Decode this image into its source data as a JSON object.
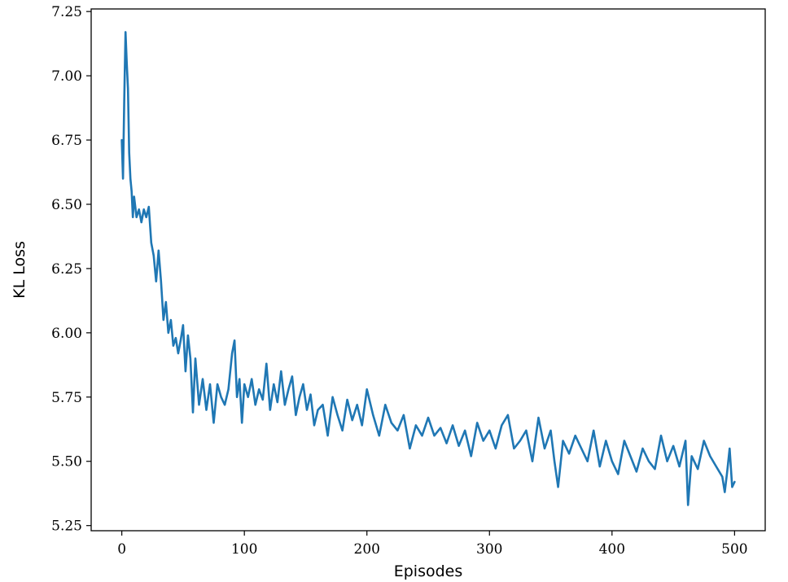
{
  "chart_data": {
    "type": "line",
    "xlabel": "Episodes",
    "ylabel": "KL Loss",
    "xlim": [
      -25,
      525
    ],
    "ylim": [
      5.23,
      7.26
    ],
    "grid": false,
    "xticks": [
      0,
      100,
      200,
      300,
      400,
      500
    ],
    "yticks": [
      5.25,
      5.5,
      5.75,
      6.0,
      6.25,
      6.5,
      6.75,
      7.0,
      7.25
    ],
    "xtick_labels": [
      "0",
      "100",
      "200",
      "300",
      "400",
      "500"
    ],
    "ytick_labels": [
      "5.25",
      "5.50",
      "5.75",
      "6.00",
      "6.25",
      "6.50",
      "6.75",
      "7.00",
      "7.25"
    ],
    "series": [
      {
        "color": "#1f77b4",
        "x": [
          0,
          1,
          2,
          3,
          4,
          5,
          6,
          7,
          8,
          9,
          10,
          12,
          14,
          16,
          18,
          20,
          22,
          24,
          26,
          28,
          30,
          32,
          34,
          36,
          38,
          40,
          42,
          44,
          46,
          48,
          50,
          52,
          54,
          56,
          58,
          60,
          63,
          66,
          69,
          72,
          75,
          78,
          81,
          84,
          87,
          90,
          92,
          94,
          96,
          98,
          100,
          103,
          106,
          109,
          112,
          115,
          118,
          121,
          124,
          127,
          130,
          133,
          136,
          139,
          142,
          145,
          148,
          151,
          154,
          157,
          160,
          164,
          168,
          172,
          176,
          180,
          184,
          188,
          192,
          196,
          200,
          205,
          210,
          215,
          220,
          225,
          230,
          235,
          240,
          245,
          250,
          255,
          260,
          265,
          270,
          275,
          280,
          285,
          290,
          295,
          300,
          305,
          310,
          315,
          320,
          325,
          330,
          335,
          340,
          345,
          350,
          353,
          356,
          360,
          365,
          370,
          375,
          380,
          385,
          390,
          395,
          400,
          405,
          410,
          415,
          420,
          425,
          430,
          435,
          440,
          445,
          450,
          455,
          460,
          462,
          465,
          470,
          475,
          480,
          485,
          490,
          492,
          494,
          496,
          498,
          500
        ],
        "y": [
          6.75,
          6.6,
          6.9,
          7.17,
          7.05,
          6.95,
          6.7,
          6.6,
          6.55,
          6.45,
          6.53,
          6.45,
          6.48,
          6.43,
          6.48,
          6.45,
          6.49,
          6.35,
          6.3,
          6.2,
          6.32,
          6.2,
          6.05,
          6.12,
          6.0,
          6.05,
          5.95,
          5.98,
          5.92,
          5.97,
          6.03,
          5.85,
          5.99,
          5.9,
          5.69,
          5.9,
          5.72,
          5.82,
          5.7,
          5.8,
          5.65,
          5.8,
          5.75,
          5.72,
          5.78,
          5.92,
          5.97,
          5.75,
          5.82,
          5.65,
          5.8,
          5.75,
          5.82,
          5.72,
          5.78,
          5.74,
          5.88,
          5.7,
          5.8,
          5.73,
          5.85,
          5.72,
          5.78,
          5.83,
          5.68,
          5.75,
          5.8,
          5.7,
          5.76,
          5.64,
          5.7,
          5.72,
          5.6,
          5.75,
          5.68,
          5.62,
          5.74,
          5.66,
          5.72,
          5.64,
          5.78,
          5.68,
          5.6,
          5.72,
          5.65,
          5.62,
          5.68,
          5.55,
          5.64,
          5.6,
          5.67,
          5.6,
          5.63,
          5.57,
          5.64,
          5.56,
          5.62,
          5.52,
          5.65,
          5.58,
          5.62,
          5.55,
          5.64,
          5.68,
          5.55,
          5.58,
          5.62,
          5.5,
          5.67,
          5.55,
          5.62,
          5.5,
          5.4,
          5.58,
          5.53,
          5.6,
          5.55,
          5.5,
          5.62,
          5.48,
          5.58,
          5.5,
          5.45,
          5.58,
          5.52,
          5.46,
          5.55,
          5.5,
          5.47,
          5.6,
          5.5,
          5.56,
          5.48,
          5.58,
          5.33,
          5.52,
          5.47,
          5.58,
          5.52,
          5.48,
          5.44,
          5.38,
          5.46,
          5.55,
          5.4,
          5.42
        ]
      }
    ]
  }
}
